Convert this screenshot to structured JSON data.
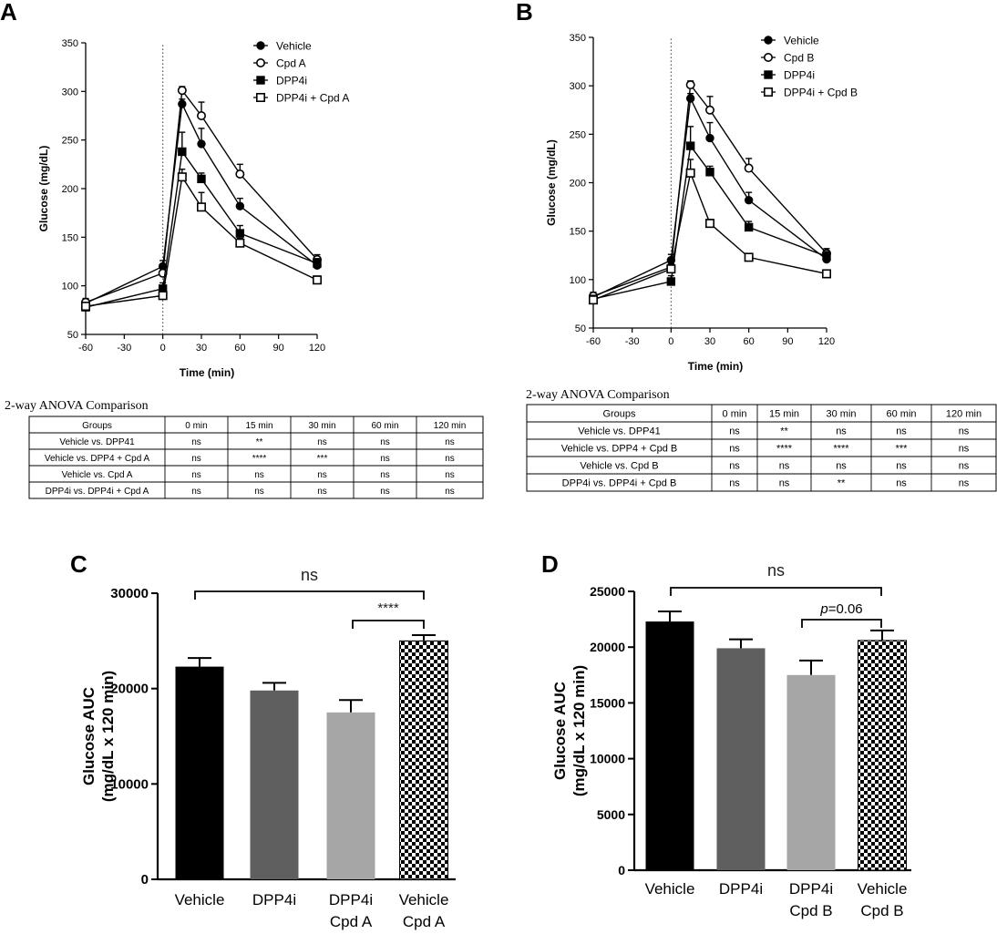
{
  "panel_labels": [
    "A",
    "B",
    "C",
    "D"
  ],
  "chart_data": [
    {
      "panel": "A",
      "type": "line",
      "xlabel": "Time (min)",
      "ylabel": "Glucose (mg/dL)",
      "xlim": [
        -60,
        120
      ],
      "ylim": [
        50,
        350
      ],
      "x_ticks": [
        -60,
        -30,
        0,
        30,
        60,
        90,
        120
      ],
      "y_ticks": [
        50,
        100,
        150,
        200,
        250,
        300,
        350
      ],
      "x": [
        -60,
        0,
        15,
        30,
        60,
        120
      ],
      "dotted_line_at": 0,
      "legend_position": "top-right",
      "series": [
        {
          "name": "Vehicle",
          "marker": "filled-circle",
          "values": [
            82,
            120,
            287,
            246,
            182,
            121
          ],
          "errors": [
            4,
            6,
            5,
            16,
            8,
            5
          ]
        },
        {
          "name": "Cpd A",
          "marker": "open-circle",
          "values": [
            83,
            113,
            301,
            275,
            215,
            127
          ],
          "errors": [
            4,
            7,
            4,
            14,
            10,
            5
          ]
        },
        {
          "name": "DPP4i",
          "marker": "filled-square",
          "values": [
            78,
            97,
            238,
            210,
            154,
            123
          ],
          "errors": [
            3,
            6,
            20,
            6,
            8,
            5
          ]
        },
        {
          "name": "DPP4i + Cpd A",
          "marker": "open-square",
          "values": [
            79,
            90,
            212,
            181,
            144,
            106
          ],
          "errors": [
            3,
            4,
            8,
            15,
            5,
            4
          ]
        }
      ]
    },
    {
      "panel": "B",
      "type": "line",
      "xlabel": "Time (min)",
      "ylabel": "Glucose (mg/dL)",
      "xlim": [
        -60,
        120
      ],
      "ylim": [
        50,
        350
      ],
      "x_ticks": [
        -60,
        -30,
        0,
        30,
        60,
        90,
        120
      ],
      "y_ticks": [
        50,
        100,
        150,
        200,
        250,
        300,
        350
      ],
      "x": [
        -60,
        0,
        15,
        30,
        60,
        120
      ],
      "dotted_line_at": 0,
      "legend_position": "top-right",
      "series": [
        {
          "name": "Vehicle",
          "marker": "filled-circle",
          "values": [
            82,
            120,
            287,
            246,
            182,
            121
          ],
          "errors": [
            4,
            6,
            5,
            16,
            8,
            5
          ]
        },
        {
          "name": "Cpd B",
          "marker": "open-circle",
          "values": [
            83,
            113,
            301,
            275,
            215,
            127
          ],
          "errors": [
            4,
            7,
            4,
            14,
            10,
            5
          ]
        },
        {
          "name": "DPP4i",
          "marker": "filled-square",
          "values": [
            80,
            98,
            238,
            211,
            154,
            124
          ],
          "errors": [
            3,
            6,
            20,
            6,
            6,
            5
          ]
        },
        {
          "name": "DPP4i + Cpd B",
          "marker": "open-square",
          "values": [
            79,
            111,
            210,
            158,
            123,
            106
          ],
          "errors": [
            3,
            5,
            14,
            4,
            3,
            4
          ]
        }
      ]
    },
    {
      "panel": "C",
      "type": "bar",
      "ylabel_line1": "Glucose AUC",
      "ylabel_line2": "(mg/dL x 120 min)",
      "ylim": [
        0,
        30000
      ],
      "y_ticks": [
        0,
        10000,
        20000,
        30000
      ],
      "categories": [
        [
          "Vehicle"
        ],
        [
          "DPP4i"
        ],
        [
          "DPP4i",
          "Cpd A"
        ],
        [
          "Vehicle",
          "Cpd A"
        ]
      ],
      "values": [
        22300,
        19800,
        17500,
        25000
      ],
      "errors": [
        900,
        800,
        1300,
        600
      ],
      "fills": [
        "#000000",
        "#5f5f5f",
        "#a6a6a6",
        "checker"
      ],
      "comparisons": [
        {
          "from": 0,
          "to": 3,
          "label": "ns"
        },
        {
          "from": 2,
          "to": 3,
          "label": "****"
        }
      ]
    },
    {
      "panel": "D",
      "type": "bar",
      "ylabel_line1": "Glucose AUC",
      "ylabel_line2": "(mg/dL x 120 min)",
      "ylim": [
        0,
        25000
      ],
      "y_ticks": [
        0,
        5000,
        10000,
        15000,
        20000,
        25000
      ],
      "categories": [
        [
          "Vehicle"
        ],
        [
          "DPP4i"
        ],
        [
          "DPP4i",
          "Cpd B"
        ],
        [
          "Vehicle",
          "Cpd B"
        ]
      ],
      "values": [
        22300,
        19900,
        17500,
        20600
      ],
      "errors": [
        900,
        800,
        1300,
        900
      ],
      "fills": [
        "#000000",
        "#5f5f5f",
        "#a6a6a6",
        "checker"
      ],
      "comparisons": [
        {
          "from": 0,
          "to": 3,
          "label": "ns"
        },
        {
          "from": 2,
          "to": 3,
          "label_italic": "p",
          "label": "=0.06"
        }
      ]
    }
  ],
  "tables": [
    {
      "panel": "A",
      "title": "2-way ANOVA Comparison",
      "headers": [
        "Groups",
        "0 min",
        "15 min",
        "30 min",
        "60 min",
        "120 min"
      ],
      "rows": [
        [
          "Vehicle vs. DPP41",
          "ns",
          "**",
          "ns",
          "ns",
          "ns"
        ],
        [
          "Vehicle vs. DPP4 + Cpd A",
          "ns",
          "****",
          "***",
          "ns",
          "ns"
        ],
        [
          "Vehicle vs. Cpd A",
          "ns",
          "ns",
          "ns",
          "ns",
          "ns"
        ],
        [
          "DPP4i vs. DPP4i + Cpd A",
          "ns",
          "ns",
          "ns",
          "ns",
          "ns"
        ]
      ]
    },
    {
      "panel": "B",
      "title": "2-way ANOVA Comparison",
      "headers": [
        "Groups",
        "0 min",
        "15 min",
        "30 min",
        "60 min",
        "120 min"
      ],
      "rows": [
        [
          "Vehicle vs. DPP41",
          "ns",
          "**",
          "ns",
          "ns",
          "ns"
        ],
        [
          "Vehicle vs. DPP4 + Cpd B",
          "ns",
          "****",
          "****",
          "***",
          "ns"
        ],
        [
          "Vehicle vs. Cpd B",
          "ns",
          "ns",
          "ns",
          "ns",
          "ns"
        ],
        [
          "DPP4i vs. DPP4i + Cpd B",
          "ns",
          "ns",
          "**",
          "ns",
          "ns"
        ]
      ]
    }
  ]
}
